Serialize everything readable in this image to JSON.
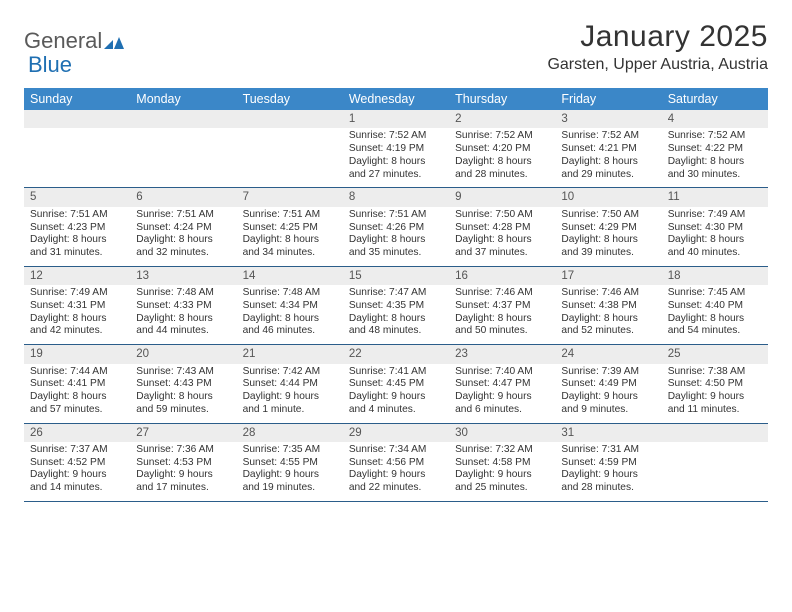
{
  "brand": {
    "part1": "General",
    "part2": "Blue"
  },
  "title": "January 2025",
  "location": "Garsten, Upper Austria, Austria",
  "colors": {
    "header_bg": "#3b87c8",
    "header_text": "#ffffff",
    "daynum_bg": "#ededed",
    "rule": "#2b5d8a",
    "brand_blue": "#1f6fb2"
  },
  "days_of_week": [
    "Sunday",
    "Monday",
    "Tuesday",
    "Wednesday",
    "Thursday",
    "Friday",
    "Saturday"
  ],
  "weeks": [
    [
      {
        "n": ""
      },
      {
        "n": ""
      },
      {
        "n": ""
      },
      {
        "n": "1",
        "sr": "Sunrise: 7:52 AM",
        "ss": "Sunset: 4:19 PM",
        "dl": "Daylight: 8 hours and 27 minutes."
      },
      {
        "n": "2",
        "sr": "Sunrise: 7:52 AM",
        "ss": "Sunset: 4:20 PM",
        "dl": "Daylight: 8 hours and 28 minutes."
      },
      {
        "n": "3",
        "sr": "Sunrise: 7:52 AM",
        "ss": "Sunset: 4:21 PM",
        "dl": "Daylight: 8 hours and 29 minutes."
      },
      {
        "n": "4",
        "sr": "Sunrise: 7:52 AM",
        "ss": "Sunset: 4:22 PM",
        "dl": "Daylight: 8 hours and 30 minutes."
      }
    ],
    [
      {
        "n": "5",
        "sr": "Sunrise: 7:51 AM",
        "ss": "Sunset: 4:23 PM",
        "dl": "Daylight: 8 hours and 31 minutes."
      },
      {
        "n": "6",
        "sr": "Sunrise: 7:51 AM",
        "ss": "Sunset: 4:24 PM",
        "dl": "Daylight: 8 hours and 32 minutes."
      },
      {
        "n": "7",
        "sr": "Sunrise: 7:51 AM",
        "ss": "Sunset: 4:25 PM",
        "dl": "Daylight: 8 hours and 34 minutes."
      },
      {
        "n": "8",
        "sr": "Sunrise: 7:51 AM",
        "ss": "Sunset: 4:26 PM",
        "dl": "Daylight: 8 hours and 35 minutes."
      },
      {
        "n": "9",
        "sr": "Sunrise: 7:50 AM",
        "ss": "Sunset: 4:28 PM",
        "dl": "Daylight: 8 hours and 37 minutes."
      },
      {
        "n": "10",
        "sr": "Sunrise: 7:50 AM",
        "ss": "Sunset: 4:29 PM",
        "dl": "Daylight: 8 hours and 39 minutes."
      },
      {
        "n": "11",
        "sr": "Sunrise: 7:49 AM",
        "ss": "Sunset: 4:30 PM",
        "dl": "Daylight: 8 hours and 40 minutes."
      }
    ],
    [
      {
        "n": "12",
        "sr": "Sunrise: 7:49 AM",
        "ss": "Sunset: 4:31 PM",
        "dl": "Daylight: 8 hours and 42 minutes."
      },
      {
        "n": "13",
        "sr": "Sunrise: 7:48 AM",
        "ss": "Sunset: 4:33 PM",
        "dl": "Daylight: 8 hours and 44 minutes."
      },
      {
        "n": "14",
        "sr": "Sunrise: 7:48 AM",
        "ss": "Sunset: 4:34 PM",
        "dl": "Daylight: 8 hours and 46 minutes."
      },
      {
        "n": "15",
        "sr": "Sunrise: 7:47 AM",
        "ss": "Sunset: 4:35 PM",
        "dl": "Daylight: 8 hours and 48 minutes."
      },
      {
        "n": "16",
        "sr": "Sunrise: 7:46 AM",
        "ss": "Sunset: 4:37 PM",
        "dl": "Daylight: 8 hours and 50 minutes."
      },
      {
        "n": "17",
        "sr": "Sunrise: 7:46 AM",
        "ss": "Sunset: 4:38 PM",
        "dl": "Daylight: 8 hours and 52 minutes."
      },
      {
        "n": "18",
        "sr": "Sunrise: 7:45 AM",
        "ss": "Sunset: 4:40 PM",
        "dl": "Daylight: 8 hours and 54 minutes."
      }
    ],
    [
      {
        "n": "19",
        "sr": "Sunrise: 7:44 AM",
        "ss": "Sunset: 4:41 PM",
        "dl": "Daylight: 8 hours and 57 minutes."
      },
      {
        "n": "20",
        "sr": "Sunrise: 7:43 AM",
        "ss": "Sunset: 4:43 PM",
        "dl": "Daylight: 8 hours and 59 minutes."
      },
      {
        "n": "21",
        "sr": "Sunrise: 7:42 AM",
        "ss": "Sunset: 4:44 PM",
        "dl": "Daylight: 9 hours and 1 minute."
      },
      {
        "n": "22",
        "sr": "Sunrise: 7:41 AM",
        "ss": "Sunset: 4:45 PM",
        "dl": "Daylight: 9 hours and 4 minutes."
      },
      {
        "n": "23",
        "sr": "Sunrise: 7:40 AM",
        "ss": "Sunset: 4:47 PM",
        "dl": "Daylight: 9 hours and 6 minutes."
      },
      {
        "n": "24",
        "sr": "Sunrise: 7:39 AM",
        "ss": "Sunset: 4:49 PM",
        "dl": "Daylight: 9 hours and 9 minutes."
      },
      {
        "n": "25",
        "sr": "Sunrise: 7:38 AM",
        "ss": "Sunset: 4:50 PM",
        "dl": "Daylight: 9 hours and 11 minutes."
      }
    ],
    [
      {
        "n": "26",
        "sr": "Sunrise: 7:37 AM",
        "ss": "Sunset: 4:52 PM",
        "dl": "Daylight: 9 hours and 14 minutes."
      },
      {
        "n": "27",
        "sr": "Sunrise: 7:36 AM",
        "ss": "Sunset: 4:53 PM",
        "dl": "Daylight: 9 hours and 17 minutes."
      },
      {
        "n": "28",
        "sr": "Sunrise: 7:35 AM",
        "ss": "Sunset: 4:55 PM",
        "dl": "Daylight: 9 hours and 19 minutes."
      },
      {
        "n": "29",
        "sr": "Sunrise: 7:34 AM",
        "ss": "Sunset: 4:56 PM",
        "dl": "Daylight: 9 hours and 22 minutes."
      },
      {
        "n": "30",
        "sr": "Sunrise: 7:32 AM",
        "ss": "Sunset: 4:58 PM",
        "dl": "Daylight: 9 hours and 25 minutes."
      },
      {
        "n": "31",
        "sr": "Sunrise: 7:31 AM",
        "ss": "Sunset: 4:59 PM",
        "dl": "Daylight: 9 hours and 28 minutes."
      },
      {
        "n": ""
      }
    ]
  ]
}
